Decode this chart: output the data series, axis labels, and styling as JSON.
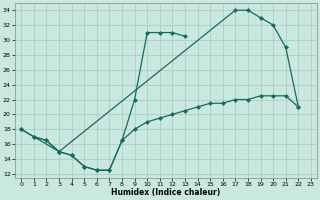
{
  "xlabel": "Humidex (Indice chaleur)",
  "bg_color": "#c8e8e0",
  "line_color": "#1a6b5a",
  "grid_color": "#a8c8c0",
  "xlim": [
    -0.5,
    23.5
  ],
  "ylim": [
    11.5,
    35
  ],
  "xticks": [
    0,
    1,
    2,
    3,
    4,
    5,
    6,
    7,
    8,
    9,
    10,
    11,
    12,
    13,
    14,
    15,
    16,
    17,
    18,
    19,
    20,
    21,
    22,
    23
  ],
  "yticks": [
    12,
    14,
    16,
    18,
    20,
    22,
    24,
    26,
    28,
    30,
    32,
    34
  ],
  "line1_x": [
    0,
    1,
    2,
    3,
    4,
    5,
    6,
    7,
    8,
    9,
    10,
    11,
    12,
    13
  ],
  "line1_y": [
    18,
    17,
    16.5,
    15,
    14.5,
    13,
    12.5,
    12.5,
    16.5,
    22,
    31,
    31,
    31,
    30.5
  ],
  "line2_x": [
    0,
    3,
    17,
    18,
    19,
    20,
    21,
    22
  ],
  "line2_y": [
    18,
    15,
    34,
    34,
    33,
    32,
    29,
    21
  ],
  "line3_x": [
    1,
    2,
    3,
    4,
    5,
    6,
    7,
    8,
    9,
    10,
    11,
    12,
    13,
    14,
    15,
    16,
    17,
    18,
    19,
    20,
    21,
    22
  ],
  "line3_y": [
    17,
    16.5,
    15,
    14.5,
    13,
    12.5,
    12.5,
    16.5,
    18,
    19,
    19.5,
    20,
    20.5,
    21,
    21.5,
    21.5,
    22,
    22,
    22.5,
    22.5,
    22.5,
    21
  ]
}
